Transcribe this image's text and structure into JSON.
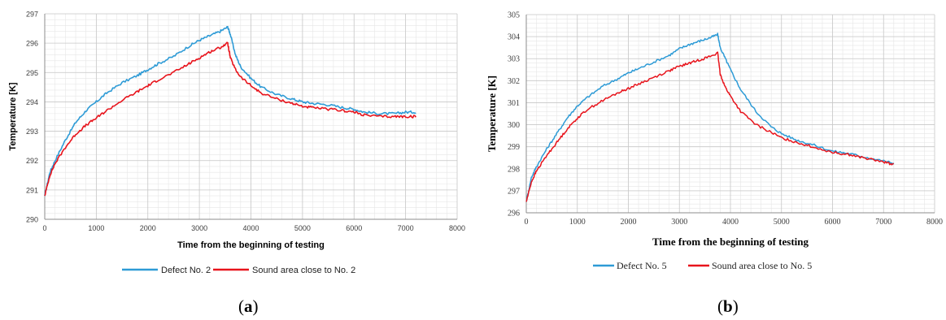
{
  "chart_data": [
    {
      "type": "line",
      "panel_caption": {
        "open": "(",
        "letter": "a",
        "close": ")"
      },
      "xlabel": "Time from the beginning of testing",
      "ylabel": "Temperature [K]",
      "xlim": [
        0,
        8000
      ],
      "ylim": [
        290,
        297
      ],
      "x_ticks": [
        0,
        1000,
        2000,
        3000,
        4000,
        5000,
        6000,
        7000,
        8000
      ],
      "y_ticks": [
        290,
        291,
        292,
        293,
        294,
        295,
        296,
        297
      ],
      "grid": true,
      "legend_position": "bottom",
      "series": [
        {
          "name": "Defect No. 2",
          "color": "#2e9bd6",
          "x": [
            0,
            100,
            200,
            400,
            600,
            800,
            1000,
            1200,
            1500,
            1800,
            2000,
            2200,
            2500,
            2800,
            3000,
            3200,
            3400,
            3550,
            3600,
            3700,
            3800,
            4000,
            4200,
            4500,
            4800,
            5000,
            5200,
            5500,
            5800,
            6000,
            6200,
            6500,
            6800,
            7000,
            7200
          ],
          "y": [
            290.8,
            291.6,
            292.0,
            292.7,
            293.3,
            293.7,
            294.0,
            294.3,
            294.65,
            294.9,
            295.1,
            295.3,
            295.55,
            295.9,
            296.1,
            296.25,
            296.4,
            296.55,
            296.3,
            295.6,
            295.2,
            294.8,
            294.5,
            294.25,
            294.1,
            294.0,
            293.95,
            293.9,
            293.8,
            293.75,
            293.65,
            293.6,
            293.6,
            293.65,
            293.65
          ]
        },
        {
          "name": "Sound area close to No. 2",
          "color": "#e8141c",
          "x": [
            0,
            100,
            200,
            400,
            600,
            800,
            1000,
            1200,
            1500,
            1800,
            2000,
            2200,
            2500,
            2800,
            3000,
            3200,
            3400,
            3550,
            3600,
            3700,
            3800,
            4000,
            4200,
            4500,
            4800,
            5000,
            5200,
            5500,
            5800,
            6000,
            6200,
            6500,
            6800,
            7000,
            7200
          ],
          "y": [
            290.8,
            291.5,
            291.9,
            292.45,
            292.9,
            293.2,
            293.45,
            293.7,
            294.05,
            294.35,
            294.55,
            294.75,
            295.0,
            295.3,
            295.5,
            295.7,
            295.85,
            296.0,
            295.5,
            295.1,
            294.85,
            294.55,
            294.3,
            294.1,
            293.95,
            293.85,
            293.8,
            293.75,
            293.7,
            293.65,
            293.55,
            293.5,
            293.5,
            293.5,
            293.5
          ]
        }
      ]
    },
    {
      "type": "line",
      "panel_caption": {
        "open": "(",
        "letter": "b",
        "close": ")"
      },
      "xlabel": "Time from the beginning of testing",
      "ylabel": "Temperature [K]",
      "xlim": [
        0,
        8000
      ],
      "ylim": [
        296,
        305
      ],
      "x_ticks": [
        0,
        1000,
        2000,
        3000,
        4000,
        5000,
        6000,
        7000,
        8000
      ],
      "y_ticks": [
        296,
        297,
        298,
        299,
        300,
        301,
        302,
        303,
        304,
        305
      ],
      "grid": true,
      "legend_position": "bottom",
      "series": [
        {
          "name": "Defect No. 5",
          "color": "#2e9bd6",
          "x": [
            0,
            100,
            200,
            400,
            600,
            800,
            1000,
            1200,
            1500,
            1800,
            2000,
            2200,
            2500,
            2800,
            3000,
            3200,
            3400,
            3600,
            3750,
            3800,
            3900,
            4000,
            4200,
            4500,
            4800,
            5000,
            5300,
            5600,
            6000,
            6300,
            6600,
            7000,
            7200
          ],
          "y": [
            296.5,
            297.6,
            298.1,
            298.9,
            299.6,
            300.3,
            300.85,
            301.25,
            301.75,
            302.1,
            302.35,
            302.55,
            302.85,
            303.15,
            303.45,
            303.65,
            303.8,
            303.95,
            304.1,
            303.5,
            303.0,
            302.5,
            301.6,
            300.6,
            299.9,
            299.6,
            299.3,
            299.1,
            298.8,
            298.7,
            298.55,
            298.35,
            298.25
          ]
        },
        {
          "name": "Sound area close to No. 5",
          "color": "#e8141c",
          "x": [
            0,
            100,
            200,
            400,
            600,
            800,
            1000,
            1200,
            1500,
            1800,
            2000,
            2200,
            2500,
            2800,
            3000,
            3200,
            3400,
            3600,
            3750,
            3800,
            3900,
            4000,
            4200,
            4500,
            4800,
            5000,
            5300,
            5600,
            6000,
            6300,
            6600,
            7000,
            7200
          ],
          "y": [
            296.5,
            297.4,
            297.9,
            298.6,
            299.2,
            299.8,
            300.3,
            300.7,
            301.1,
            301.45,
            301.65,
            301.85,
            302.15,
            302.45,
            302.65,
            302.8,
            302.95,
            303.1,
            303.25,
            302.3,
            301.7,
            301.3,
            300.6,
            300.0,
            299.65,
            299.4,
            299.2,
            299.0,
            298.75,
            298.65,
            298.5,
            298.3,
            298.2
          ]
        }
      ]
    }
  ]
}
